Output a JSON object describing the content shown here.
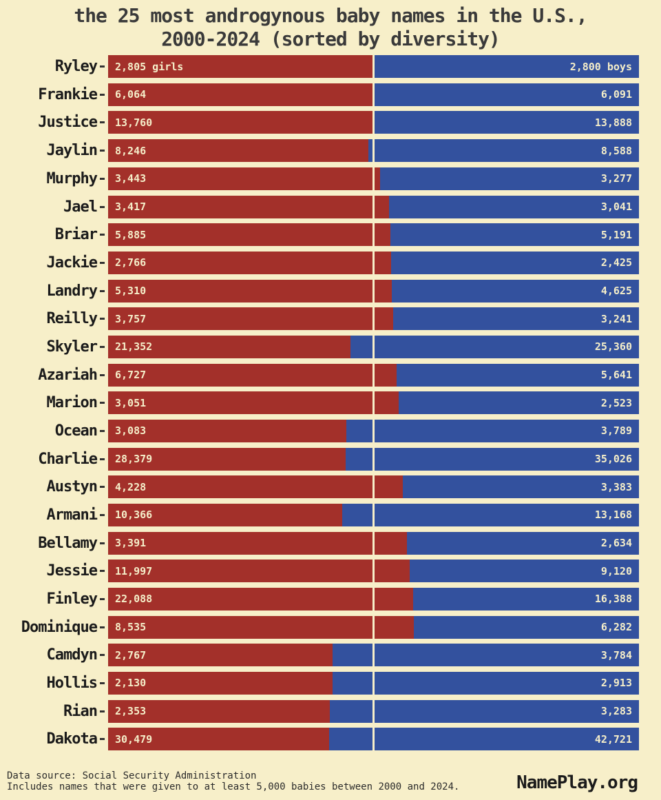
{
  "title_line1": "the 25 most androgynous baby names in the U.S.,",
  "title_line2": "2000-2024 (sorted by diversity)",
  "colors": {
    "background": "#f7efc9",
    "girls_bar": "#a3302a",
    "boys_bar": "#33519e",
    "bar_label": "#f5eec9",
    "center_line": "#f7efc9"
  },
  "chart_data": {
    "type": "bar",
    "orientation": "horizontal",
    "stacked": true,
    "title": "the 25 most androgynous baby names in the U.S., 2000-2024 (sorted by diversity)",
    "series_names": [
      "girls",
      "boys"
    ],
    "center_reference": "50% gender split line",
    "rows": [
      {
        "name": "Ryley",
        "girls": 2805,
        "boys": 2800,
        "girls_label": "2,805 girls",
        "boys_label": "2,800 boys"
      },
      {
        "name": "Frankie",
        "girls": 6064,
        "boys": 6091,
        "girls_label": "6,064",
        "boys_label": "6,091"
      },
      {
        "name": "Justice",
        "girls": 13760,
        "boys": 13888,
        "girls_label": "13,760",
        "boys_label": "13,888"
      },
      {
        "name": "Jaylin",
        "girls": 8246,
        "boys": 8588,
        "girls_label": "8,246",
        "boys_label": "8,588"
      },
      {
        "name": "Murphy",
        "girls": 3443,
        "boys": 3277,
        "girls_label": "3,443",
        "boys_label": "3,277"
      },
      {
        "name": "Jael",
        "girls": 3417,
        "boys": 3041,
        "girls_label": "3,417",
        "boys_label": "3,041"
      },
      {
        "name": "Briar",
        "girls": 5885,
        "boys": 5191,
        "girls_label": "5,885",
        "boys_label": "5,191"
      },
      {
        "name": "Jackie",
        "girls": 2766,
        "boys": 2425,
        "girls_label": "2,766",
        "boys_label": "2,425"
      },
      {
        "name": "Landry",
        "girls": 5310,
        "boys": 4625,
        "girls_label": "5,310",
        "boys_label": "4,625"
      },
      {
        "name": "Reilly",
        "girls": 3757,
        "boys": 3241,
        "girls_label": "3,757",
        "boys_label": "3,241"
      },
      {
        "name": "Skyler",
        "girls": 21352,
        "boys": 25360,
        "girls_label": "21,352",
        "boys_label": "25,360"
      },
      {
        "name": "Azariah",
        "girls": 6727,
        "boys": 5641,
        "girls_label": "6,727",
        "boys_label": "5,641"
      },
      {
        "name": "Marion",
        "girls": 3051,
        "boys": 2523,
        "girls_label": "3,051",
        "boys_label": "2,523"
      },
      {
        "name": "Ocean",
        "girls": 3083,
        "boys": 3789,
        "girls_label": "3,083",
        "boys_label": "3,789"
      },
      {
        "name": "Charlie",
        "girls": 28379,
        "boys": 35026,
        "girls_label": "28,379",
        "boys_label": "35,026"
      },
      {
        "name": "Austyn",
        "girls": 4228,
        "boys": 3383,
        "girls_label": "4,228",
        "boys_label": "3,383"
      },
      {
        "name": "Armani",
        "girls": 10366,
        "boys": 13168,
        "girls_label": "10,366",
        "boys_label": "13,168"
      },
      {
        "name": "Bellamy",
        "girls": 3391,
        "boys": 2634,
        "girls_label": "3,391",
        "boys_label": "2,634"
      },
      {
        "name": "Jessie",
        "girls": 11997,
        "boys": 9120,
        "girls_label": "11,997",
        "boys_label": "9,120"
      },
      {
        "name": "Finley",
        "girls": 22088,
        "boys": 16388,
        "girls_label": "22,088",
        "boys_label": "16,388"
      },
      {
        "name": "Dominique",
        "girls": 8535,
        "boys": 6282,
        "girls_label": "8,535",
        "boys_label": "6,282"
      },
      {
        "name": "Camdyn",
        "girls": 2767,
        "boys": 3784,
        "girls_label": "2,767",
        "boys_label": "3,784"
      },
      {
        "name": "Hollis",
        "girls": 2130,
        "boys": 2913,
        "girls_label": "2,130",
        "boys_label": "2,913"
      },
      {
        "name": "Rian",
        "girls": 2353,
        "boys": 3283,
        "girls_label": "2,353",
        "boys_label": "3,283"
      },
      {
        "name": "Dakota",
        "girls": 30479,
        "boys": 42721,
        "girls_label": "30,479",
        "boys_label": "42,721"
      }
    ]
  },
  "footer": {
    "source_line1": "Data source: Social Security Administration",
    "source_line2": "Includes names that were given to at least 5,000 babies between 2000 and 2024.",
    "brand": "NamePlay.org"
  }
}
